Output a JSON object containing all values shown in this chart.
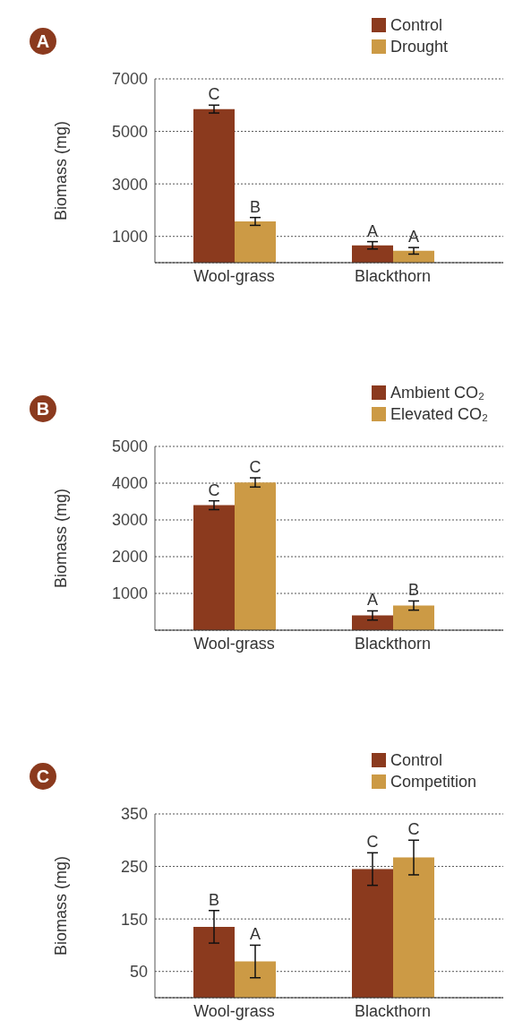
{
  "chart_data": [
    {
      "type": "bar",
      "title": "A",
      "ylabel": "Biomass (mg)",
      "categories": [
        "Wool-grass",
        "Blackthorn"
      ],
      "series": [
        {
          "name": "Control",
          "color": "#8b3a1e",
          "values": [
            5850,
            660
          ],
          "errors": [
            150,
            140
          ]
        },
        {
          "name": "Drought",
          "color": "#cc9a45",
          "values": [
            1570,
            450
          ],
          "errors": [
            150,
            125
          ]
        }
      ],
      "ylim": [
        0,
        7000
      ],
      "yticks": [
        1000,
        3000,
        5000,
        7000
      ],
      "grid": "y",
      "legend": "top right",
      "annotations": [
        {
          "text": "C",
          "x": "Wool-grass",
          "y": 5850
        },
        {
          "text": "B",
          "x": "Wool-grass",
          "y": 1570
        },
        {
          "text": "A",
          "x": "Blackthorn",
          "y": 660
        },
        {
          "text": "A",
          "x": "Blackthorn",
          "y": 450
        }
      ]
    },
    {
      "type": "bar",
      "title": "B",
      "ylabel": "Biomass (mg)",
      "categories": [
        "Wool-grass",
        "Blackthorn"
      ],
      "series": [
        {
          "name": "Ambient CO₂",
          "color": "#8b3a1e",
          "values": [
            3400,
            400
          ],
          "errors": [
            120,
            125
          ]
        },
        {
          "name": "Elevated CO₂",
          "color": "#cc9a45",
          "values": [
            4020,
            670
          ],
          "errors": [
            125,
            125
          ]
        }
      ],
      "ylim": [
        0,
        5000
      ],
      "yticks": [
        1000,
        2000,
        3000,
        4000,
        5000
      ],
      "grid": "y",
      "legend": "top right",
      "annotations": [
        {
          "text": "C",
          "x": "Wool-grass",
          "y": 3400
        },
        {
          "text": "C",
          "x": "Wool-grass",
          "y": 4020
        },
        {
          "text": "A",
          "x": "Blackthorn",
          "y": 400
        },
        {
          "text": "B",
          "x": "Blackthorn",
          "y": 670
        }
      ]
    },
    {
      "type": "bar",
      "title": "C",
      "ylabel": "Biomass (mg)",
      "categories": [
        "Wool-grass",
        "Blackthorn"
      ],
      "series": [
        {
          "name": "Control",
          "color": "#8b3a1e",
          "values": [
            135,
            245
          ],
          "errors": [
            31,
            31
          ]
        },
        {
          "name": "Competition",
          "color": "#cc9a45",
          "values": [
            69,
            267
          ],
          "errors": [
            31,
            33
          ]
        }
      ],
      "ylim": [
        0,
        350
      ],
      "yticks": [
        50,
        150,
        250,
        350
      ],
      "grid": "y",
      "legend": "top right",
      "annotations": [
        {
          "text": "B",
          "x": "Wool-grass",
          "y": 135
        },
        {
          "text": "A",
          "x": "Wool-grass",
          "y": 69
        },
        {
          "text": "C",
          "x": "Blackthorn",
          "y": 245
        },
        {
          "text": "C",
          "x": "Blackthorn",
          "y": 267
        }
      ]
    }
  ]
}
